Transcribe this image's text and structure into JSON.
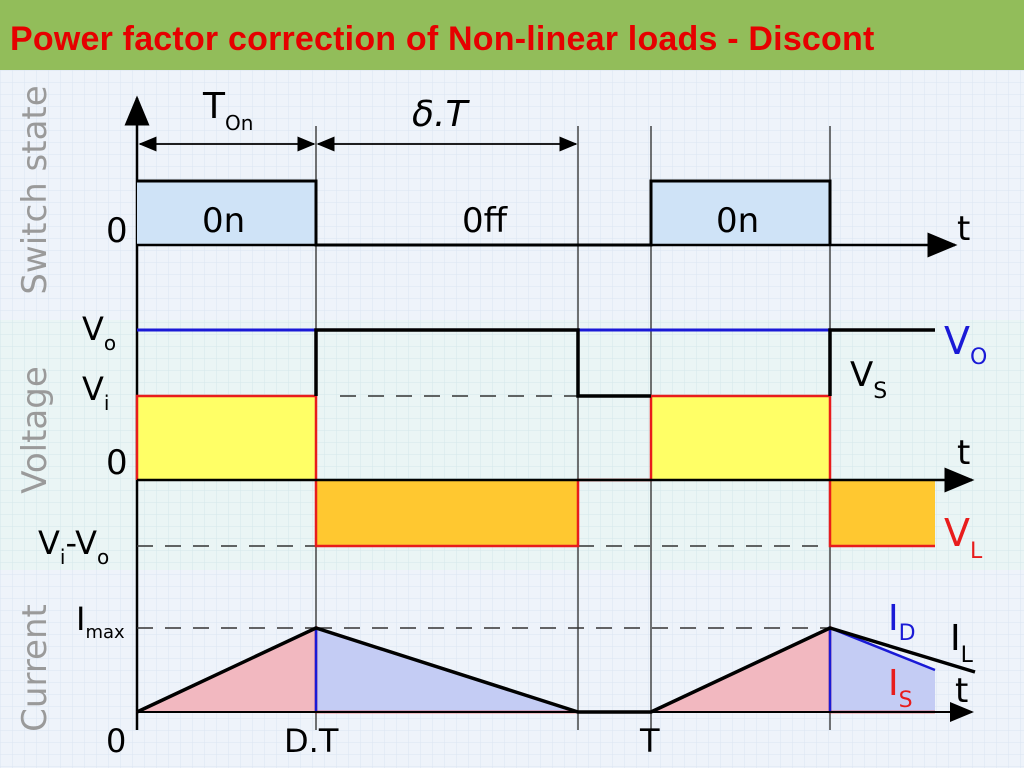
{
  "slide": {
    "title": "Power factor correction of Non-linear loads - Discont",
    "title_color": "#e60000",
    "header_color": "#92bd5a"
  },
  "sections": {
    "switch": "Switch state",
    "voltage": "Voltage",
    "current": "Current"
  },
  "timing": {
    "t_on_main": "T",
    "t_on_sub": "On",
    "delta_t": "δ.T"
  },
  "switch_states": {
    "on1": "0n",
    "off": "0ff",
    "on2": "0n"
  },
  "axis": {
    "t": "t",
    "zero": "0",
    "dt": "D.T",
    "T": "T"
  },
  "voltage_labels": {
    "vo_main": "V",
    "vo_sub": "o",
    "vi_main": "V",
    "vi_sub": "i",
    "zero": "0",
    "vivo_a": "V",
    "vivo_a_sub": "i",
    "vivo_dash": "-",
    "vivo_b": "V",
    "vivo_b_sub": "o"
  },
  "current_labels": {
    "imax_main": "I",
    "imax_sub": "max"
  },
  "legend": {
    "vo_main": "V",
    "vo_sub": "O",
    "vs_main": "V",
    "vs_sub": "S",
    "vl_main": "V",
    "vl_sub": "L",
    "id_main": "I",
    "id_sub": "D",
    "il_main": "I",
    "il_sub": "L",
    "is_main": "I",
    "is_sub": "S"
  },
  "colors": {
    "vo": "#1a1ad6",
    "vl": "#e81c1c",
    "on_fill": "#cfe3f7",
    "vi_fill": "#ffff66",
    "vl_fill": "#ffc830",
    "is_fill": "#f2b8c0",
    "id_fill": "#c4ccf4"
  }
}
